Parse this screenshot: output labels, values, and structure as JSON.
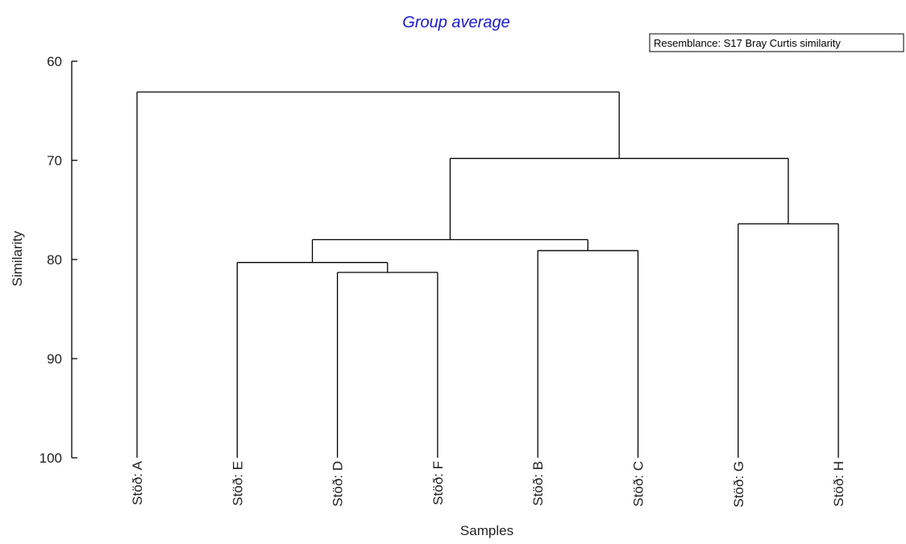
{
  "chart_data": {
    "type": "dendrogram",
    "title": "Group average",
    "annotation": "Resemblance: S17 Bray Curtis similarity",
    "xlabel": "Samples",
    "ylabel": "Similarity",
    "ylim": [
      100,
      60
    ],
    "yticks": [
      60,
      70,
      80,
      90,
      100
    ],
    "leaves": [
      "Stöð: A",
      "Stöð: E",
      "Stöð: D",
      "Stöð: F",
      "Stöð: B",
      "Stöð: C",
      "Stöð: G",
      "Stöð: H"
    ],
    "merges": [
      {
        "a": "Stöð: D",
        "b": "Stöð: F",
        "similarity": 81.3
      },
      {
        "a": "Stöð: B",
        "b": "Stöð: C",
        "similarity": 79.1
      },
      {
        "a": "Stöð: E",
        "b": "D+F",
        "similarity": 80.3
      },
      {
        "a": "E+D+F",
        "b": "B+C",
        "similarity": 78.0
      },
      {
        "a": "Stöð: G",
        "b": "Stöð: H",
        "similarity": 76.4
      },
      {
        "a": "E+D+F+B+C",
        "b": "G+H",
        "similarity": 69.8
      },
      {
        "a": "Stöð: A",
        "b": "E+D+F+B+C+G+H",
        "similarity": 63.1
      }
    ]
  }
}
